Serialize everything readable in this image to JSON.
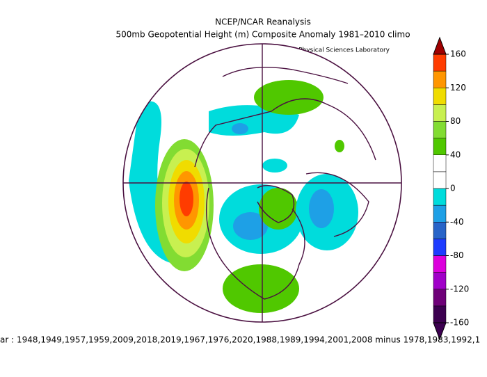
{
  "title": "NCEP/NCAR Reanalysis",
  "subtitle": "500mb Geopotential Height (m) Composite Anomaly 1981–2010 climo",
  "credit": "NOAA Physical Sciences Laboratory",
  "caption": "ar : 1948,1949,1957,1959,2009,2018,2019,1967,1976,2020,1988,1989,1994,2001,2008 minus 1978,1983,1992,1",
  "colorbar": {
    "lim": [
      -160,
      160
    ],
    "ticks": [
      160,
      120,
      80,
      40,
      0,
      -40,
      -80,
      -120,
      -160
    ],
    "top_color": "#a00000",
    "bottom_color": "#3c0050",
    "colors": [
      "#3c0050",
      "#6e0078",
      "#a000c8",
      "#dc00dc",
      "#1e3cff",
      "#2864c8",
      "#1ea0e6",
      "#00dcdc",
      "#ffffff",
      "#ffffff",
      "#50c800",
      "#82dc32",
      "#c8f050",
      "#f0dc00",
      "#ff9600",
      "#ff3c00"
    ]
  }
}
